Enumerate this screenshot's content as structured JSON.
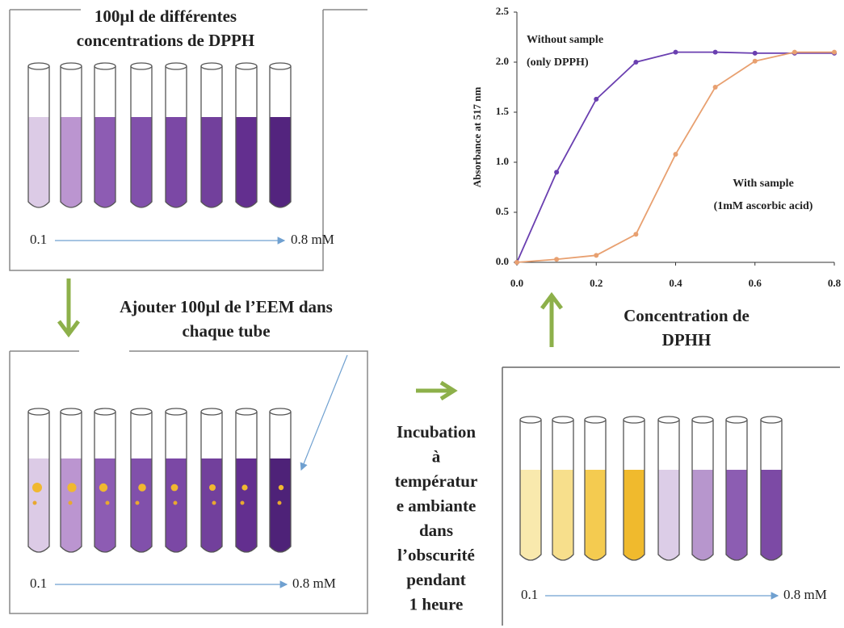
{
  "panels": [
    {
      "title_lines": [
        "100µl de différentes",
        "concentrations de DPPH"
      ],
      "tubes": [
        "#dccbe6",
        "#bb95d0",
        "#8d5cb3",
        "#8150ab",
        "#7b48a5",
        "#72409c",
        "#632f8f",
        "#53247e"
      ],
      "range_start": "0.1",
      "range_end": "0.8 mM"
    },
    {
      "tubes": [
        "#dccbe6",
        "#bb95d0",
        "#8d5cb3",
        "#8150ab",
        "#7b48a5",
        "#72409c",
        "#632f8f",
        "#4e2278"
      ],
      "range_start": "0.1",
      "range_end": "0.8 mM"
    },
    {
      "tubes": [
        "#f9e9ad",
        "#f7df8c",
        "#f4cb50",
        "#f0ba2d",
        "#dccde7",
        "#b796cd",
        "#8c5db2",
        "#7c4aa5"
      ],
      "range_start": "0.1",
      "range_end": "0.8 mM"
    }
  ],
  "steps": {
    "add_lines": [
      "Ajouter 100µl de l’EEM dans",
      "chaque tube"
    ],
    "incubation_lines": [
      "Incubation",
      "à",
      "températur",
      "e ambiante",
      "dans",
      "l’obscurité",
      "pendant",
      "1 heure"
    ]
  },
  "chart_data": {
    "type": "line",
    "x": [
      0.0,
      0.1,
      0.2,
      0.3,
      0.4,
      0.5,
      0.6,
      0.7,
      0.8
    ],
    "series": [
      {
        "color": "#6a3fb0",
        "values": [
          0.0,
          0.9,
          1.63,
          2.0,
          2.1,
          2.1,
          2.09,
          2.09,
          2.09
        ]
      },
      {
        "color": "#e8a070",
        "values": [
          0.0,
          0.03,
          0.07,
          0.28,
          1.08,
          1.75,
          2.01,
          2.1,
          2.1
        ]
      }
    ],
    "xlim": [
      0,
      0.8
    ],
    "ylim": [
      0,
      2.5
    ],
    "xticks": [
      {
        "value": 0,
        "label": "0.0"
      },
      0.2,
      0.4,
      0.6,
      0.8
    ],
    "yticks": [
      {
        "value": 0,
        "label": "0.0"
      },
      0.5,
      {
        "value": 1,
        "label": "1.0"
      },
      1.5,
      {
        "value": 2,
        "label": "2.0"
      },
      2.5
    ],
    "y_label": "Absorbance at 517 nm",
    "x_label_lines": [
      "Concentration de",
      "DPHH"
    ],
    "annotations": [
      [
        "Without sample",
        "(only DPPH)"
      ],
      [
        "With sample",
        "(1mM ascorbic acid)"
      ]
    ]
  }
}
